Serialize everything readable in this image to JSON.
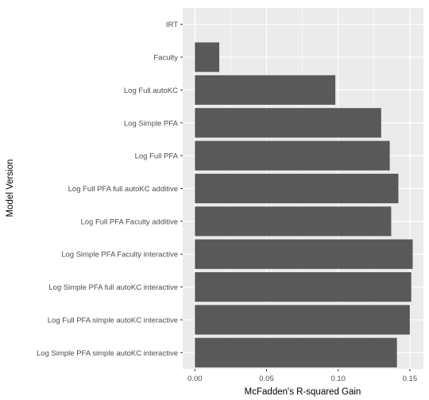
{
  "chart_data": {
    "type": "bar",
    "orientation": "horizontal",
    "categories": [
      "IRT",
      "Faculty",
      "Log Full autoKC",
      "Log Simple PFA",
      "Log Full PFA",
      "Log Full PFA full autoKC additive",
      "Log Full PFA Faculty additive",
      "Log Simple PFA Faculty interactive",
      "Log Simple PFA full autoKC interactive",
      "Log Full PFA simple autoKC interactive",
      "Log Simple PFA simple autoKC interactive"
    ],
    "values": [
      0.0,
      0.017,
      0.098,
      0.13,
      0.136,
      0.142,
      0.137,
      0.152,
      0.151,
      0.15,
      0.141
    ],
    "xlabel": "McFadden's R-squared Gain",
    "ylabel": "Model Version",
    "xlim": [
      -0.0085,
      0.1595
    ],
    "xticks": [
      0.0,
      0.05,
      0.1,
      0.15
    ],
    "xtick_labels": [
      "0.00",
      "0.05",
      "0.10",
      "0.15"
    ],
    "grid": true,
    "bar_color": "#595959",
    "panel_color": "#ebebeb",
    "grid_color": "#ffffff"
  }
}
